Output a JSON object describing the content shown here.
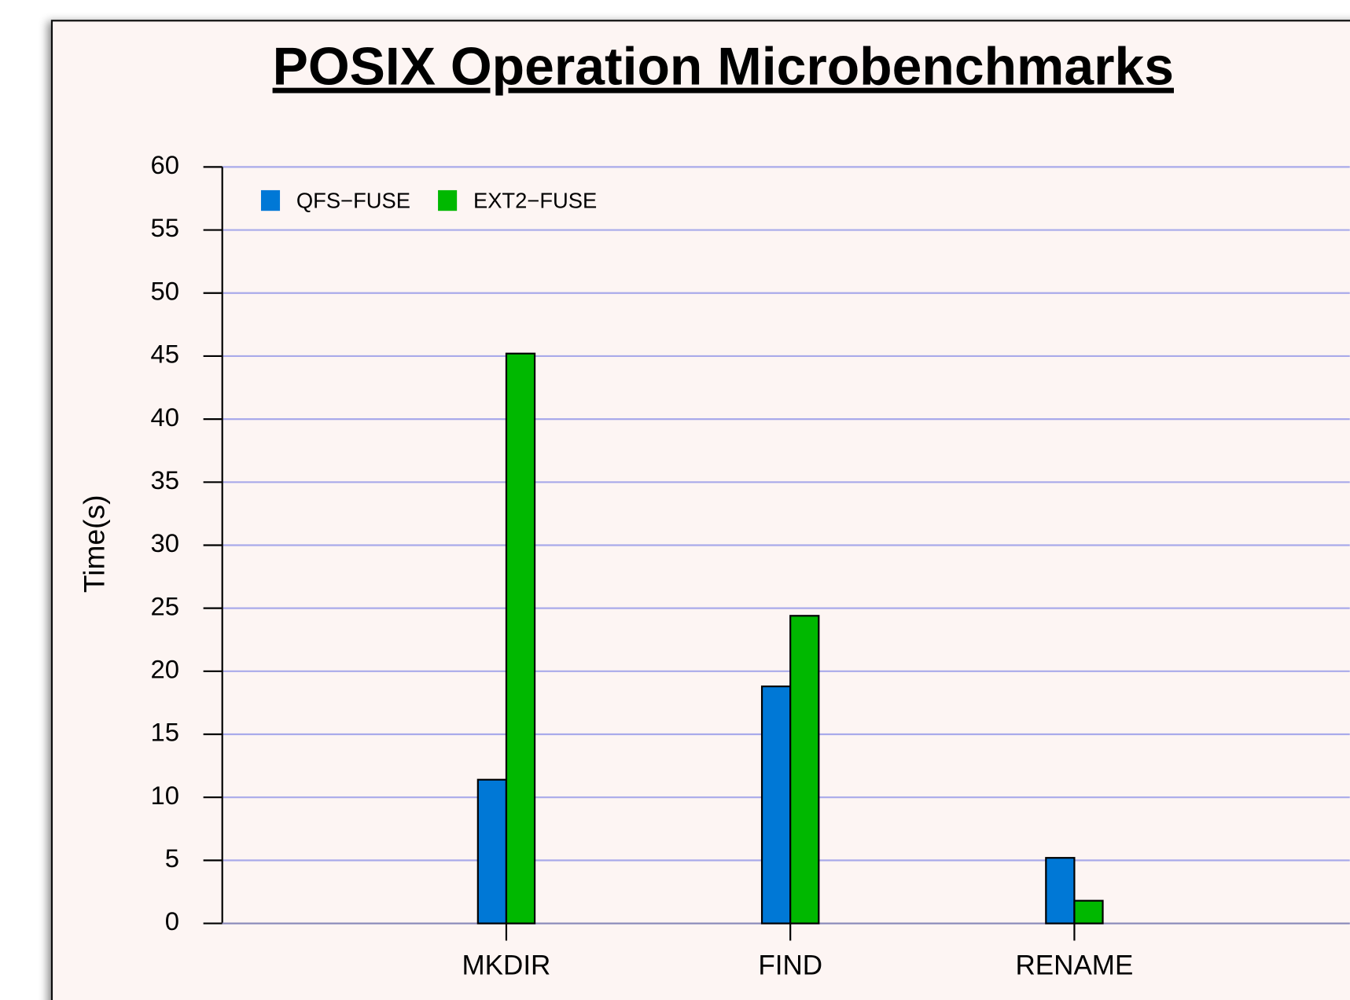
{
  "chart_data": {
    "type": "bar",
    "title": "POSIX Operation Microbenchmarks",
    "y_label": "Time(s)",
    "categories": [
      "MKDIR",
      "FIND",
      "RENAME"
    ],
    "series": [
      {
        "name": "QFS−FUSE",
        "color": "#0078d6",
        "values": [
          11.4,
          18.8,
          5.2
        ]
      },
      {
        "name": "EXT2−FUSE",
        "color": "#00b800",
        "values": [
          45.2,
          24.4,
          1.8
        ]
      }
    ],
    "ylim": [
      0,
      60
    ],
    "yticks": [
      0,
      5,
      10,
      15,
      20,
      25,
      30,
      35,
      40,
      45,
      50,
      55,
      60
    ],
    "grid": true,
    "legend": "top-left"
  }
}
